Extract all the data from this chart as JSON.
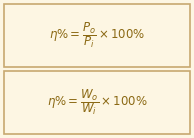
{
  "background_color": "#fdf6e3",
  "border_color": "#c8a870",
  "text_color": "#8B6914",
  "formula1": "$\\eta\\% = \\dfrac{P_o}{P_i} \\times 100\\%$",
  "formula2": "$\\eta\\% = \\dfrac{W_o}{W_i} \\times 100\\%$",
  "fig_width": 1.94,
  "fig_height": 1.38,
  "dpi": 100
}
